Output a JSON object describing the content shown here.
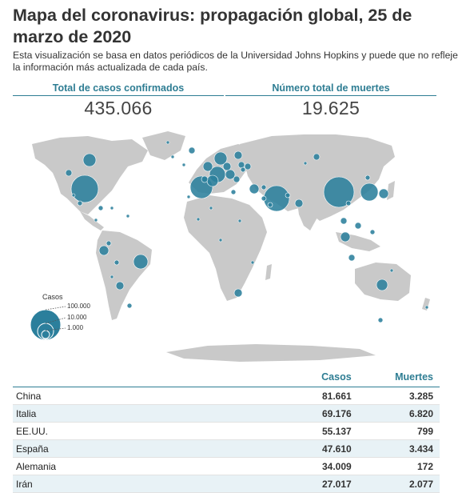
{
  "header": {
    "title": "Mapa del coronavirus: propagación global, 25 de marzo de 2020",
    "subtitle": "Esta visualización se basa en datos periódicos de la Universidad Johns Hopkins y puede que no refleje la información más actualizada de cada país."
  },
  "stats": {
    "cases_label": "Total de casos confirmados",
    "cases_value": "435.066",
    "deaths_label": "Número total de muertes",
    "deaths_value": "19.625"
  },
  "colors": {
    "accent": "#2e7d93",
    "bubble": "#2b7f9c",
    "land": "#c9c9c9",
    "row_stripe": "#e8f2f6"
  },
  "legend": {
    "title": "Casos",
    "items": [
      "100.000",
      "10.000",
      "1.000"
    ]
  },
  "table": {
    "headers": {
      "cases": "Casos",
      "deaths": "Muertes"
    },
    "rows": [
      {
        "country": "China",
        "cases": "81.661",
        "deaths": "3.285"
      },
      {
        "country": "Italia",
        "cases": "69.176",
        "deaths": "6.820"
      },
      {
        "country": "EE.UU.",
        "cases": "55.137",
        "deaths": "799"
      },
      {
        "country": "España",
        "cases": "47.610",
        "deaths": "3.434"
      },
      {
        "country": "Alemania",
        "cases": "34.009",
        "deaths": "172"
      },
      {
        "country": "Irán",
        "cases": "27.017",
        "deaths": "2.077"
      }
    ]
  }
}
